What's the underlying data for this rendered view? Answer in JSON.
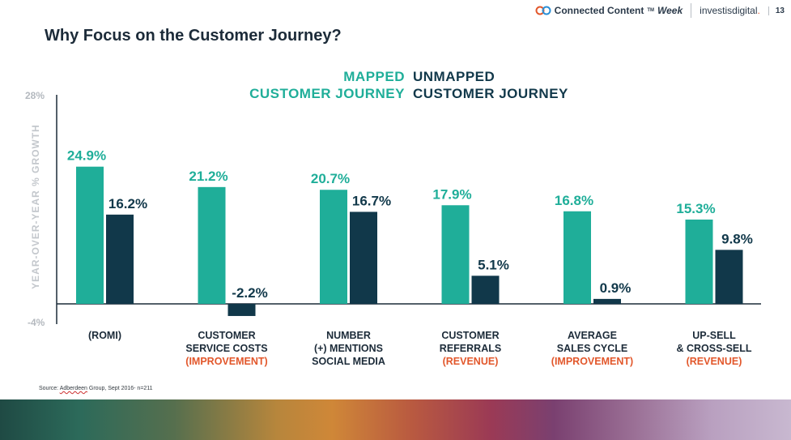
{
  "header": {
    "brand_name": "Connected Content",
    "brand_tm": "TM",
    "brand_week": "Week",
    "partner_name": "investis",
    "partner_suffix": "digital",
    "partner_dot": ".",
    "page_number": "13"
  },
  "slide": {
    "title": "Why Focus on the Customer Journey?",
    "source_prefix": "Source: ",
    "source_underlined": "Adberdeen",
    "source_rest": " Group, Sept 2016- n=211"
  },
  "colors": {
    "mapped": "#1fae99",
    "unmapped": "#11384a",
    "qualifier": "#e2572b",
    "axis": "#1c2b39"
  },
  "chart_data": {
    "type": "bar",
    "title": "",
    "xlabel": "",
    "ylabel": "YEAR-OVER-YEAR % GROWTH",
    "ylim": [
      -4,
      28
    ],
    "ytick_labels": [
      "28%",
      "-4%"
    ],
    "legend": {
      "mapped_line1": "MAPPED",
      "mapped_line2": "CUSTOMER JOURNEY",
      "unmapped_line1": "UNMAPPED",
      "unmapped_line2": "CUSTOMER JOURNEY"
    },
    "categories": [
      {
        "lines": [
          "(ROMI)"
        ],
        "qualifier": ""
      },
      {
        "lines": [
          "CUSTOMER",
          "SERVICE COSTS"
        ],
        "qualifier": "(IMPROVEMENT)"
      },
      {
        "lines": [
          "NUMBER",
          "(+) MENTIONS",
          "SOCIAL MEDIA"
        ],
        "qualifier": ""
      },
      {
        "lines": [
          "CUSTOMER",
          "REFERRALS"
        ],
        "qualifier": "(REVENUE)"
      },
      {
        "lines": [
          "AVERAGE",
          "SALES CYCLE"
        ],
        "qualifier": "(IMPROVEMENT)"
      },
      {
        "lines": [
          "UP-SELL",
          "& CROSS-SELL"
        ],
        "qualifier": "(REVENUE)"
      }
    ],
    "series": [
      {
        "name": "Mapped Customer Journey",
        "values": [
          24.9,
          21.2,
          20.7,
          17.9,
          16.8,
          15.3
        ],
        "labels": [
          "24.9%",
          "21.2%",
          "20.7%",
          "17.9%",
          "16.8%",
          "15.3%"
        ]
      },
      {
        "name": "Unmapped Customer Journey",
        "values": [
          16.2,
          -2.2,
          16.7,
          5.1,
          0.9,
          9.8
        ],
        "labels": [
          "16.2%",
          "-2.2%",
          "16.7%",
          "5.1%",
          "0.9%",
          "9.8%"
        ]
      }
    ]
  }
}
